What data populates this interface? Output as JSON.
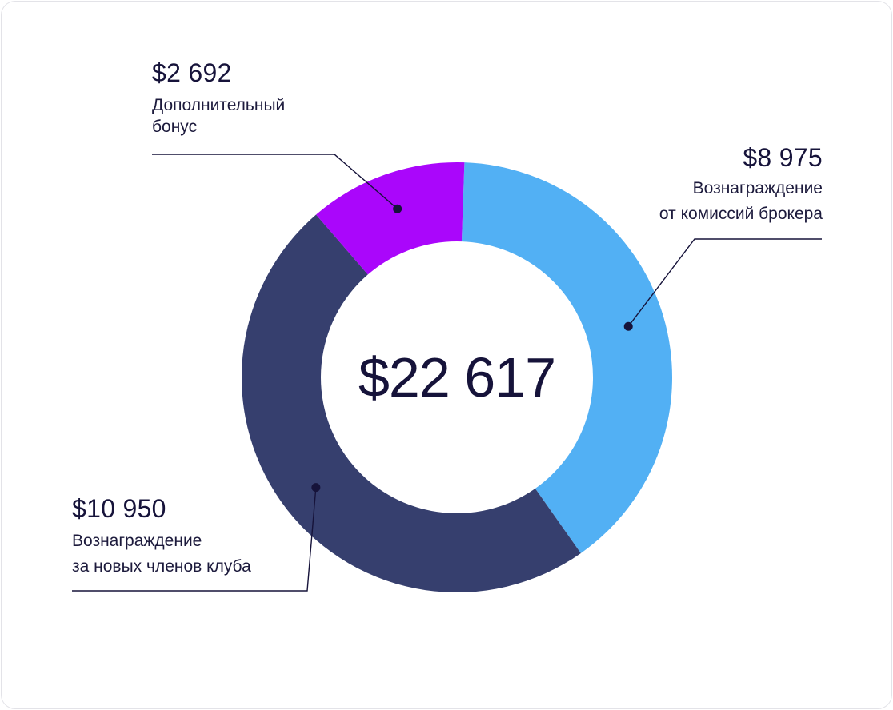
{
  "chart_data": {
    "type": "pie",
    "variant": "donut",
    "total_label": "$22 617",
    "slices": [
      {
        "name": "Вознаграждение от комиссий брокера",
        "amount_label": "$8 975",
        "value": 8975,
        "color": "#52b0f4",
        "desc_lines": [
          "Вознаграждение",
          "от комиссий брокера"
        ]
      },
      {
        "name": "Вознаграждение за новых членов клуба",
        "amount_label": "$10 950",
        "value": 10950,
        "color": "#363f6e",
        "desc_lines": [
          "Вознаграждение",
          "за новых членов клуба"
        ]
      },
      {
        "name": "Дополнительный бонус",
        "amount_label": "$2 692",
        "value": 2692,
        "color": "#aa06fb",
        "desc_lines": [
          "Дополнительный",
          "бонус"
        ]
      }
    ],
    "start": "top",
    "direction": "clockwise"
  }
}
